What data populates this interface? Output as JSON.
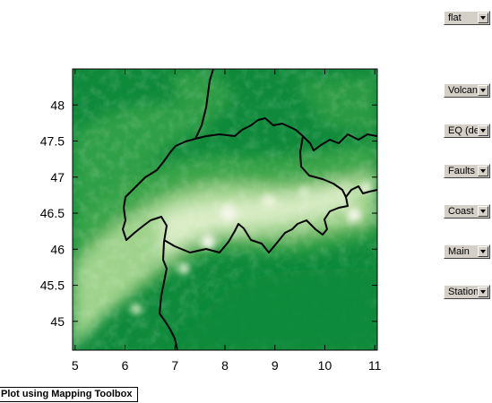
{
  "controls": {
    "shading_select": "flat",
    "volcano_select": "Volcanoes",
    "eq_select": "EQ (depth)",
    "faults_select": "Faults",
    "coast_select": "Coast",
    "main_select": "Main",
    "station_select": "Stations"
  },
  "mapping_button": "Plot using Mapping Toolbox",
  "map": {
    "x_ticks": [
      "5",
      "6",
      "7",
      "8",
      "9",
      "10",
      "11"
    ],
    "y_ticks": [
      "48",
      "47.5",
      "47",
      "46.5",
      "46",
      "45.5",
      "45"
    ],
    "xlim": [
      4.95,
      11.05
    ],
    "ylim": [
      44.6,
      48.5
    ],
    "colors": {
      "lowland": "#0e8a3a",
      "hills": "#3aa54a",
      "high": "#9fd38c",
      "peaks": "#f1f7e6",
      "border": "#000000"
    }
  }
}
